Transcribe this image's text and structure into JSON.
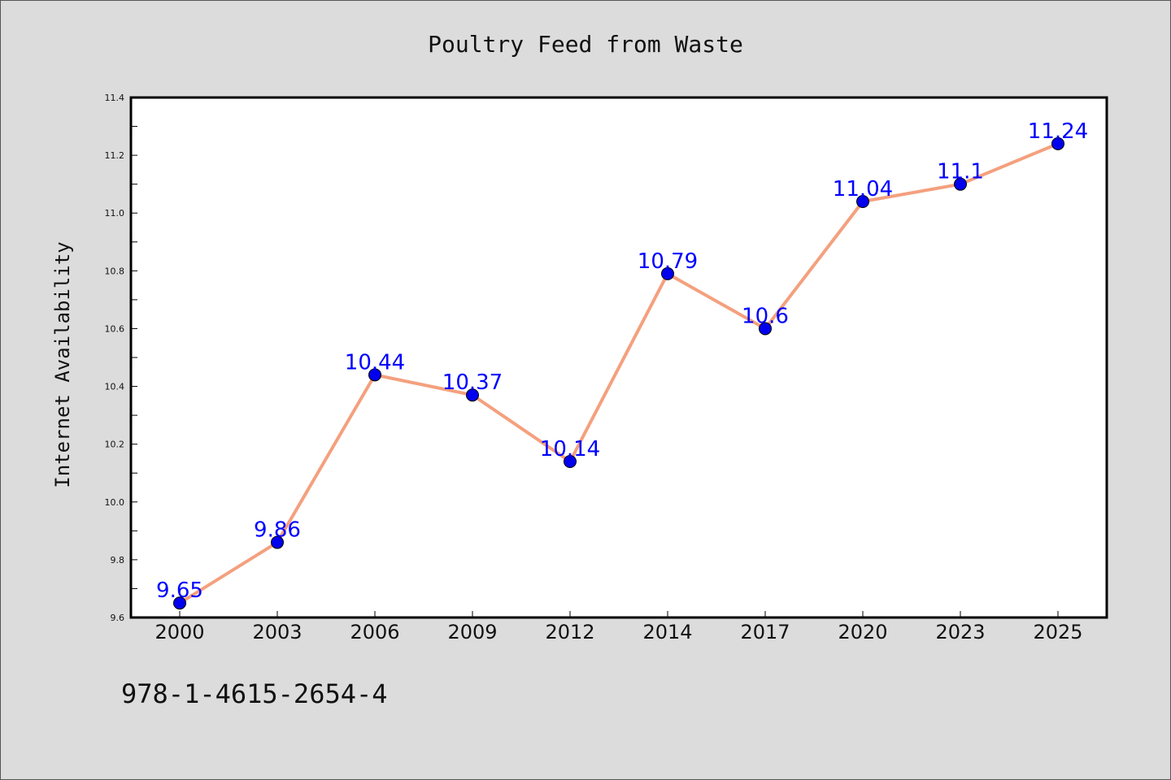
{
  "chart_data": {
    "type": "line",
    "title": "Poultry Feed from Waste",
    "xlabel": "",
    "ylabel": "Internet Availability",
    "categories": [
      "2000",
      "2003",
      "2006",
      "2009",
      "2012",
      "2014",
      "2017",
      "2020",
      "2023",
      "2025"
    ],
    "series": [
      {
        "values": [
          9.65,
          9.86,
          10.44,
          10.37,
          10.14,
          10.79,
          10.6,
          11.04,
          11.1,
          11.24
        ],
        "line_color": "#f4a07e",
        "marker_color": "#0000ee",
        "label_color": "#0000ff"
      }
    ],
    "data_labels": [
      "9.65",
      "9.86",
      "10.44",
      "10.37",
      "10.14",
      "10.79",
      "10.6",
      "11.04",
      "11.1",
      "11.24"
    ],
    "ylim": [
      9.6,
      11.4
    ],
    "yticks": [
      "9.6",
      "9.8",
      "10.0",
      "10.2",
      "10.4",
      "10.6",
      "10.8",
      "11.0",
      "11.2",
      "11.4"
    ],
    "grid": false,
    "legend": "none"
  },
  "footer": {
    "text": "978-1-4615-2654-4"
  },
  "colors": {
    "background": "#dcdcdc",
    "plot_background": "#ffffff",
    "axis": "#000000"
  }
}
